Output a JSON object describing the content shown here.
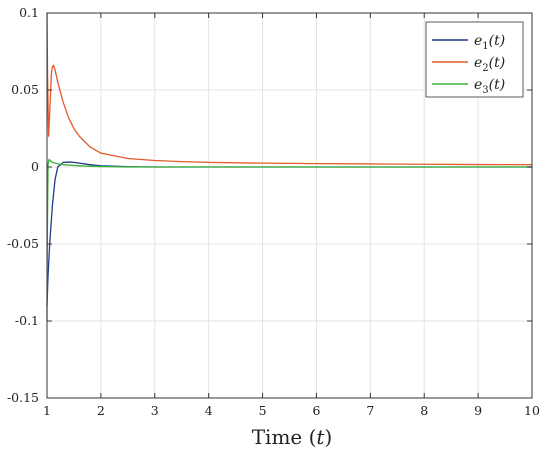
{
  "chart_data": {
    "type": "line",
    "title": "",
    "xlabel": "Time (t)",
    "ylabel": "",
    "xlim": [
      1,
      10
    ],
    "ylim": [
      -0.15,
      0.1
    ],
    "grid": true,
    "legend_position": "top-right",
    "x_ticks": [
      "1",
      "2",
      "3",
      "4",
      "5",
      "6",
      "7",
      "8",
      "9",
      "10"
    ],
    "y_ticks": [
      "0.1",
      "0.05",
      "0",
      "-0.05",
      "-0.1",
      "-0.15"
    ],
    "series": [
      {
        "name": "e1(t)",
        "color": "#1f3c88",
        "x": [
          1.0,
          1.02,
          1.05,
          1.08,
          1.1,
          1.15,
          1.2,
          1.3,
          1.4,
          1.5,
          1.6,
          1.7,
          1.8,
          2.0,
          2.5,
          3,
          4,
          5,
          6,
          7,
          8,
          9,
          10
        ],
        "y": [
          -0.09,
          -0.07,
          -0.05,
          -0.035,
          -0.025,
          -0.008,
          0.0,
          0.003,
          0.0032,
          0.003,
          0.0025,
          0.002,
          0.0015,
          0.0008,
          0.0002,
          0.0,
          0.0,
          0.0,
          0.0,
          0.0,
          0.0,
          0.0,
          0.0
        ]
      },
      {
        "name": "e2(t)",
        "color": "#e05a2b",
        "x": [
          1.0,
          1.01,
          1.03,
          1.05,
          1.08,
          1.1,
          1.12,
          1.15,
          1.2,
          1.3,
          1.4,
          1.5,
          1.6,
          1.8,
          2.0,
          2.5,
          3,
          3.5,
          4,
          5,
          6,
          7,
          8,
          9,
          10
        ],
        "y": [
          0.1,
          0.06,
          0.02,
          0.035,
          0.06,
          0.065,
          0.066,
          0.063,
          0.055,
          0.042,
          0.032,
          0.025,
          0.02,
          0.013,
          0.009,
          0.0055,
          0.0042,
          0.0035,
          0.003,
          0.0025,
          0.0022,
          0.002,
          0.0018,
          0.0016,
          0.0015
        ]
      },
      {
        "name": "e3(t)",
        "color": "#3cb43c",
        "x": [
          1.0,
          1.005,
          1.02,
          1.04,
          1.06,
          1.08,
          1.1,
          1.15,
          1.2,
          1.3,
          1.5,
          1.7,
          2.0,
          2.5,
          3,
          4,
          5,
          6,
          7,
          8,
          9,
          10
        ],
        "y": [
          -0.1,
          -0.05,
          0.002,
          0.005,
          0.004,
          0.0035,
          0.003,
          0.0025,
          0.002,
          0.0015,
          0.001,
          0.0006,
          0.0003,
          0.0,
          0.0,
          0.0,
          0.0,
          0.0,
          0.0,
          0.0,
          0.0,
          0.0
        ]
      }
    ]
  },
  "legend": {
    "items": [
      {
        "base": "e",
        "sub": "1",
        "rest": "(t)"
      },
      {
        "base": "e",
        "sub": "2",
        "rest": "(t)"
      },
      {
        "base": "e",
        "sub": "3",
        "rest": "(t)"
      }
    ]
  },
  "axes": {
    "xlabel_main": "Time (",
    "xlabel_var": "t",
    "xlabel_close": ")"
  }
}
